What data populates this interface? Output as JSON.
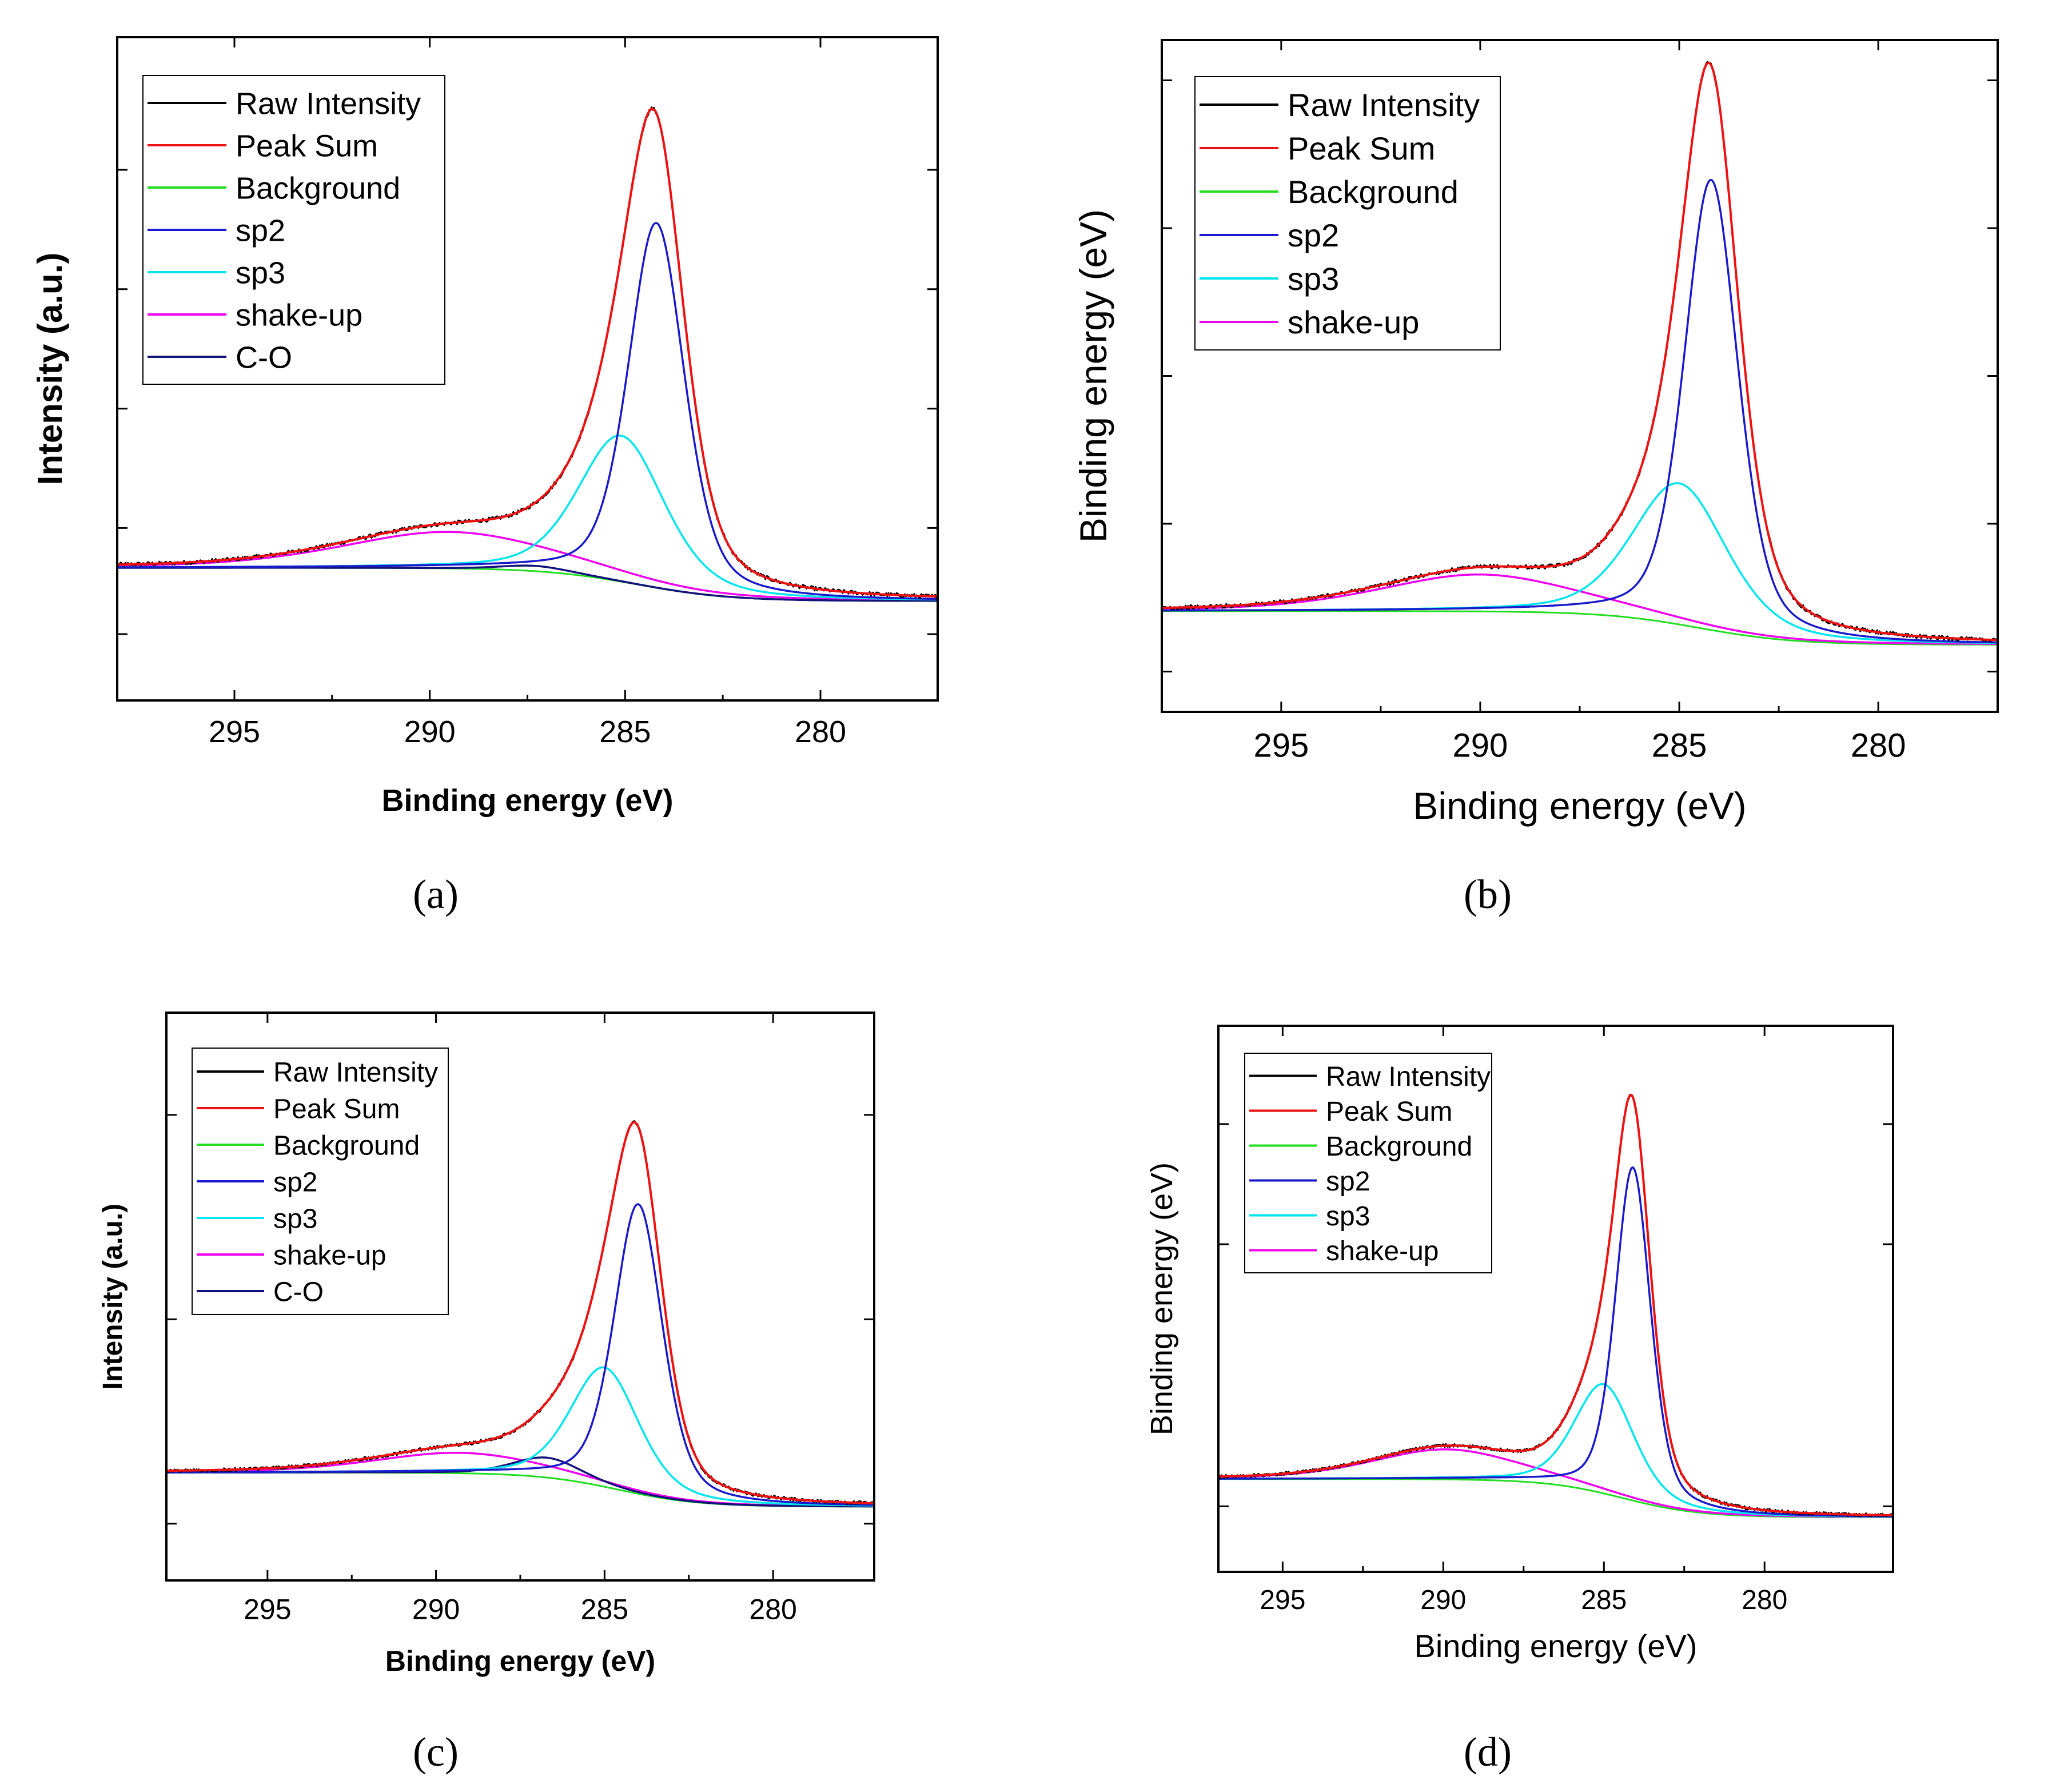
{
  "panel_captions": [
    "(a)",
    "(b)",
    "(c)",
    "(d)"
  ],
  "chart_data": [
    {
      "type": "line",
      "caption": "(a)",
      "xlabel": "Binding energy (eV)",
      "ylabel": "Intensity (a.u.)",
      "xlim": [
        298,
        277
      ],
      "ylim": [
        0,
        1.0
      ],
      "x_ticks": [
        295,
        290,
        285,
        280
      ],
      "yticks_labeled": false,
      "y_ticks": [
        0.1,
        0.26,
        0.44,
        0.62,
        0.8
      ],
      "legend": [
        "Raw Intensity",
        "Peak Sum",
        "Background",
        "sp2",
        "sp3",
        "shake-up",
        "C-O"
      ],
      "legend_position": "top-left",
      "baseline_start": 0.2,
      "baseline_end": 0.15,
      "background_step_center": 284.7,
      "background_step_width": 1.2,
      "components": [
        {
          "name": "sp2",
          "center": 284.2,
          "height": 0.55,
          "fwhm": 1.7
        },
        {
          "name": "sp3",
          "center": 285.1,
          "height": 0.22,
          "fwhm": 2.6
        },
        {
          "name": "shake-up",
          "center": 289.5,
          "height": 0.055,
          "fwhm": 6.5
        },
        {
          "name": "C-O",
          "center": 287.3,
          "height": 0.008,
          "fwhm": 2.0
        }
      ]
    },
    {
      "type": "line",
      "caption": "(b)",
      "xlabel": "Binding energy (eV)",
      "ylabel": "Binding energy (eV)",
      "xlim": [
        298,
        277
      ],
      "ylim": [
        0,
        1.0
      ],
      "x_ticks": [
        295,
        290,
        285,
        280
      ],
      "yticks_labeled": false,
      "y_ticks": [
        0.06,
        0.28,
        0.5,
        0.72,
        0.94
      ],
      "legend": [
        "Raw Intensity",
        "Peak Sum",
        "Background",
        "sp2",
        "sp3",
        "shake-up"
      ],
      "legend_position": "top-left",
      "baseline_start": 0.15,
      "baseline_end": 0.1,
      "background_step_center": 284.5,
      "background_step_width": 1.2,
      "components": [
        {
          "name": "sp2",
          "center": 284.2,
          "height": 0.67,
          "fwhm": 1.6
        },
        {
          "name": "sp3",
          "center": 285.0,
          "height": 0.21,
          "fwhm": 2.8
        },
        {
          "name": "shake-up",
          "center": 290.0,
          "height": 0.055,
          "fwhm": 6.0
        }
      ]
    },
    {
      "type": "line",
      "caption": "(c)",
      "xlabel": "Binding energy (eV)",
      "ylabel": "Intensity (a.u.)",
      "xlim": [
        298,
        277
      ],
      "ylim": [
        0,
        1.0
      ],
      "x_ticks": [
        295,
        290,
        285,
        280
      ],
      "yticks_labeled": false,
      "y_ticks": [
        0.1,
        0.46,
        0.82
      ],
      "legend": [
        "Raw Intensity",
        "Peak Sum",
        "Background",
        "sp2",
        "sp3",
        "shake-up",
        "C-O"
      ],
      "legend_position": "top-left",
      "baseline_start": 0.19,
      "baseline_end": 0.13,
      "background_step_center": 284.6,
      "background_step_width": 1.2,
      "components": [
        {
          "name": "sp2",
          "center": 284.0,
          "height": 0.51,
          "fwhm": 1.7
        },
        {
          "name": "sp3",
          "center": 285.0,
          "height": 0.21,
          "fwhm": 2.4
        },
        {
          "name": "shake-up",
          "center": 289.3,
          "height": 0.036,
          "fwhm": 6.0
        },
        {
          "name": "C-O",
          "center": 286.7,
          "height": 0.035,
          "fwhm": 2.4
        }
      ]
    },
    {
      "type": "line",
      "caption": "(d)",
      "xlabel": "Binding energy (eV)",
      "ylabel": "Binding energy (eV)",
      "xlim": [
        297,
        276
      ],
      "ylim": [
        0,
        1.0
      ],
      "x_ticks": [
        295,
        290,
        285,
        280
      ],
      "yticks_labeled": false,
      "y_ticks": [
        0.12,
        0.6,
        0.82
      ],
      "legend": [
        "Raw Intensity",
        "Peak Sum",
        "Background",
        "sp2",
        "sp3",
        "shake-up"
      ],
      "legend_position": "top-left",
      "baseline_start": 0.17,
      "baseline_end": 0.1,
      "background_step_center": 284.4,
      "background_step_width": 1.2,
      "components": [
        {
          "name": "sp2",
          "center": 284.1,
          "height": 0.61,
          "fwhm": 1.3
        },
        {
          "name": "sp3",
          "center": 285.0,
          "height": 0.2,
          "fwhm": 2.2
        },
        {
          "name": "shake-up",
          "center": 289.9,
          "height": 0.055,
          "fwhm": 5.5
        }
      ]
    }
  ],
  "colors": {
    "Raw Intensity": "#000000",
    "Peak Sum": "#ee1111",
    "Background": "#22dd22",
    "sp2": "#1a1acc",
    "sp3": "#00e5ee",
    "shake-up": "#ee00ee",
    "C-O": "#12127a"
  }
}
